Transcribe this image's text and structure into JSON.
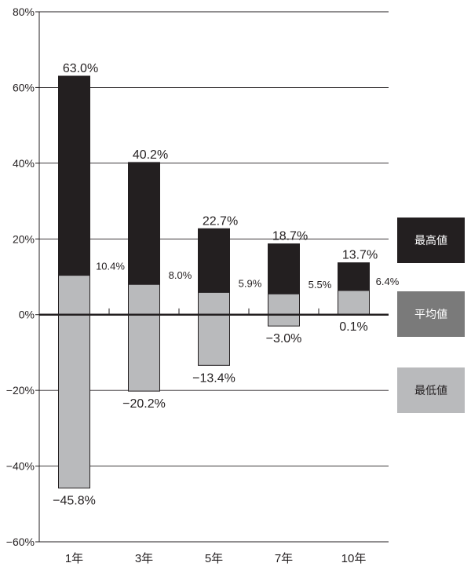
{
  "chart_data": {
    "type": "bar",
    "categories": [
      "1年",
      "3年",
      "5年",
      "7年",
      "10年"
    ],
    "series": [
      {
        "name": "最高値",
        "values": [
          63.0,
          40.2,
          22.7,
          18.7,
          13.7
        ]
      },
      {
        "name": "平均値",
        "values": [
          10.4,
          8.0,
          5.9,
          5.5,
          6.4
        ]
      },
      {
        "name": "最低値",
        "values": [
          -45.8,
          -20.2,
          -13.4,
          -3.0,
          0.1
        ]
      }
    ],
    "high_labels": [
      "63.0%",
      "40.2%",
      "22.7%",
      "18.7%",
      "13.7%"
    ],
    "avg_labels": [
      "10.4%",
      "8.0%",
      "5.9%",
      "5.5%",
      "6.4%"
    ],
    "low_labels": [
      "−45.8%",
      "−20.2%",
      "−13.4%",
      "−3.0%",
      "0.1%"
    ],
    "ylim": [
      -60,
      80
    ],
    "yticks": [
      80,
      60,
      40,
      20,
      0,
      -20,
      -40,
      -60
    ],
    "ytick_labels": [
      "80%",
      "60%",
      "40%",
      "20%",
      "0%",
      "−20%",
      "−40%",
      "−60%"
    ],
    "grid": true,
    "legend_position": "right",
    "colors": {
      "high": "#231f20",
      "avg": "#7a7a7a",
      "low": "#b9babc"
    }
  },
  "legend": {
    "high": "最高値",
    "avg": "平均値",
    "low": "最低値"
  }
}
